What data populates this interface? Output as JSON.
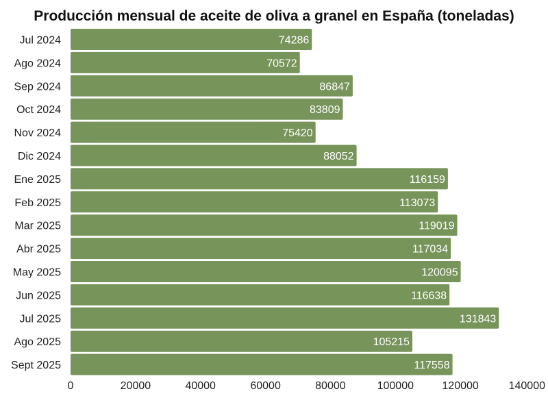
{
  "chart_data": {
    "type": "bar",
    "orientation": "horizontal",
    "title": "Producción mensual de aceite de oliva a granel en España (toneladas)",
    "categories": [
      "Jul 2024",
      "Ago 2024",
      "Sep 2024",
      "Oct 2024",
      "Nov 2024",
      "Dic 2024",
      "Ene 2025",
      "Feb 2025",
      "Mar 2025",
      "Abr 2025",
      "May 2025",
      "Jun 2025",
      "Jul 2025",
      "Ago 2025",
      "Sept 2025"
    ],
    "values": [
      74286,
      70572,
      86847,
      83809,
      75420,
      88052,
      116159,
      113073,
      119019,
      117034,
      120095,
      116638,
      131843,
      105215,
      117558
    ],
    "xlim": [
      0,
      140000
    ],
    "xticks": [
      "0",
      "20000",
      "40000",
      "60000",
      "80000",
      "100000",
      "120000",
      "140000"
    ],
    "xlabel": "",
    "ylabel": "",
    "bar_color": "#77945a",
    "grid": false,
    "data_labels": "inside-end"
  }
}
